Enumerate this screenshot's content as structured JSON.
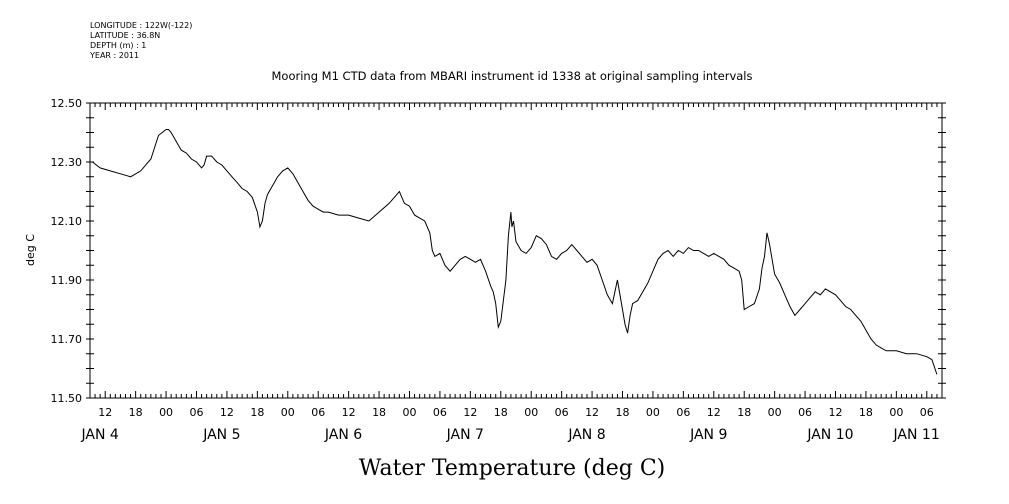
{
  "header": {
    "longitude": "LONGITUDE : 122W(-122)",
    "latitude": "LATITUDE : 36.8N",
    "depth": "DEPTH (m) : 1",
    "year": "YEAR : 2011"
  },
  "chart_data": {
    "type": "line",
    "title": "Mooring M1 CTD data from MBARI instrument id 1338 at original sampling intervals",
    "xlabel": "Water Temperature (deg C)",
    "ylabel": "deg C",
    "xlim": [
      -15,
      153
    ],
    "ylim": [
      11.5,
      12.5
    ],
    "grid": false,
    "y_ticks": [
      "12.50",
      "12.30",
      "12.10",
      "11.90",
      "11.70",
      "11.50"
    ],
    "x_hour_ticks": [
      {
        "x": -12,
        "label": "12"
      },
      {
        "x": -6,
        "label": "18"
      },
      {
        "x": 0,
        "label": "00"
      },
      {
        "x": 6,
        "label": "06"
      },
      {
        "x": 12,
        "label": "12"
      },
      {
        "x": 18,
        "label": "18"
      },
      {
        "x": 24,
        "label": "00"
      },
      {
        "x": 30,
        "label": "06"
      },
      {
        "x": 36,
        "label": "12"
      },
      {
        "x": 42,
        "label": "18"
      },
      {
        "x": 48,
        "label": "00"
      },
      {
        "x": 54,
        "label": "06"
      },
      {
        "x": 60,
        "label": "12"
      },
      {
        "x": 66,
        "label": "18"
      },
      {
        "x": 72,
        "label": "00"
      },
      {
        "x": 78,
        "label": "06"
      },
      {
        "x": 84,
        "label": "12"
      },
      {
        "x": 90,
        "label": "18"
      },
      {
        "x": 96,
        "label": "00"
      },
      {
        "x": 102,
        "label": "06"
      },
      {
        "x": 108,
        "label": "12"
      },
      {
        "x": 114,
        "label": "18"
      },
      {
        "x": 120,
        "label": "00"
      },
      {
        "x": 126,
        "label": "06"
      },
      {
        "x": 132,
        "label": "12"
      },
      {
        "x": 138,
        "label": "18"
      },
      {
        "x": 144,
        "label": "00"
      },
      {
        "x": 150,
        "label": "06"
      }
    ],
    "x_day_labels": [
      {
        "x": -13,
        "label": "JAN  4"
      },
      {
        "x": 11,
        "label": "JAN  5"
      },
      {
        "x": 35,
        "label": "JAN  6"
      },
      {
        "x": 59,
        "label": "JAN  7"
      },
      {
        "x": 83,
        "label": "JAN  8"
      },
      {
        "x": 107,
        "label": "JAN  9"
      },
      {
        "x": 131,
        "label": "JAN 10"
      },
      {
        "x": 148,
        "label": "JAN 11"
      }
    ],
    "series": [
      {
        "x": [
          -14.5,
          -13,
          -11,
          -9,
          -7,
          -5,
          -3,
          -1.5,
          0,
          0.5,
          1,
          2,
          3,
          4,
          5,
          6,
          7,
          7.5,
          8,
          9,
          10,
          11,
          12,
          13,
          14,
          15,
          16,
          17,
          18,
          18.5,
          19,
          19.5,
          20,
          21,
          22,
          23,
          24,
          25,
          26,
          27,
          28,
          29,
          30,
          31,
          32,
          34,
          36,
          38,
          40,
          42,
          44,
          46,
          46.5,
          47,
          48,
          49,
          50,
          51,
          52,
          52.5,
          53,
          54,
          55,
          56,
          57,
          58,
          59,
          60,
          61,
          62,
          63,
          64,
          64.5,
          65,
          65.5,
          66,
          67,
          67.5,
          68,
          68.2,
          68.5,
          69,
          70,
          71,
          72,
          73,
          74,
          75,
          76,
          77,
          78,
          79,
          80,
          81,
          82,
          83,
          84,
          85,
          86,
          87,
          88,
          89,
          90,
          90.5,
          91,
          91.5,
          92,
          93,
          94,
          95,
          96,
          97,
          98,
          99,
          100,
          101,
          102,
          103,
          104,
          105,
          106,
          107,
          108,
          109,
          110,
          111,
          112,
          113,
          113.5,
          114,
          115,
          116,
          117,
          117.5,
          118,
          118.5,
          119,
          120,
          121,
          122,
          123,
          124,
          125,
          126,
          127,
          128,
          129,
          130,
          131,
          132,
          133,
          134,
          135,
          136,
          137,
          138,
          139,
          140,
          141,
          142,
          144,
          146,
          148,
          150,
          151,
          152
        ],
        "y": [
          12.3,
          12.28,
          12.27,
          12.26,
          12.25,
          12.27,
          12.31,
          12.39,
          12.41,
          12.41,
          12.4,
          12.37,
          12.34,
          12.33,
          12.31,
          12.3,
          12.28,
          12.29,
          12.32,
          12.32,
          12.3,
          12.29,
          12.27,
          12.25,
          12.23,
          12.21,
          12.2,
          12.18,
          12.13,
          12.08,
          12.1,
          12.16,
          12.19,
          12.22,
          12.25,
          12.27,
          12.28,
          12.26,
          12.23,
          12.2,
          12.17,
          12.15,
          12.14,
          12.13,
          12.13,
          12.12,
          12.12,
          12.11,
          12.1,
          12.13,
          12.16,
          12.2,
          12.18,
          12.16,
          12.15,
          12.12,
          12.11,
          12.1,
          12.06,
          12.0,
          11.98,
          11.99,
          11.95,
          11.93,
          11.95,
          11.97,
          11.98,
          11.97,
          11.96,
          11.97,
          11.93,
          11.88,
          11.86,
          11.82,
          11.74,
          11.76,
          11.9,
          12.05,
          12.13,
          12.08,
          12.1,
          12.03,
          12.0,
          11.99,
          12.01,
          12.05,
          12.04,
          12.02,
          11.98,
          11.97,
          11.99,
          12.0,
          12.02,
          12.0,
          11.98,
          11.96,
          11.97,
          11.95,
          11.9,
          11.85,
          11.82,
          11.9,
          11.8,
          11.75,
          11.72,
          11.78,
          11.82,
          11.83,
          11.86,
          11.89,
          11.93,
          11.97,
          11.99,
          12.0,
          11.98,
          12.0,
          11.99,
          12.01,
          12.0,
          12.0,
          11.99,
          11.98,
          11.99,
          11.98,
          11.97,
          11.95,
          11.94,
          11.93,
          11.9,
          11.8,
          11.81,
          11.82,
          11.87,
          11.94,
          11.98,
          12.06,
          12.02,
          11.92,
          11.89,
          11.85,
          11.81,
          11.78,
          11.8,
          11.82,
          11.84,
          11.86,
          11.85,
          11.87,
          11.86,
          11.85,
          11.83,
          11.81,
          11.8,
          11.78,
          11.76,
          11.73,
          11.7,
          11.68,
          11.67,
          11.66,
          11.66,
          11.65,
          11.65,
          11.64,
          11.63,
          11.58
        ]
      }
    ]
  }
}
